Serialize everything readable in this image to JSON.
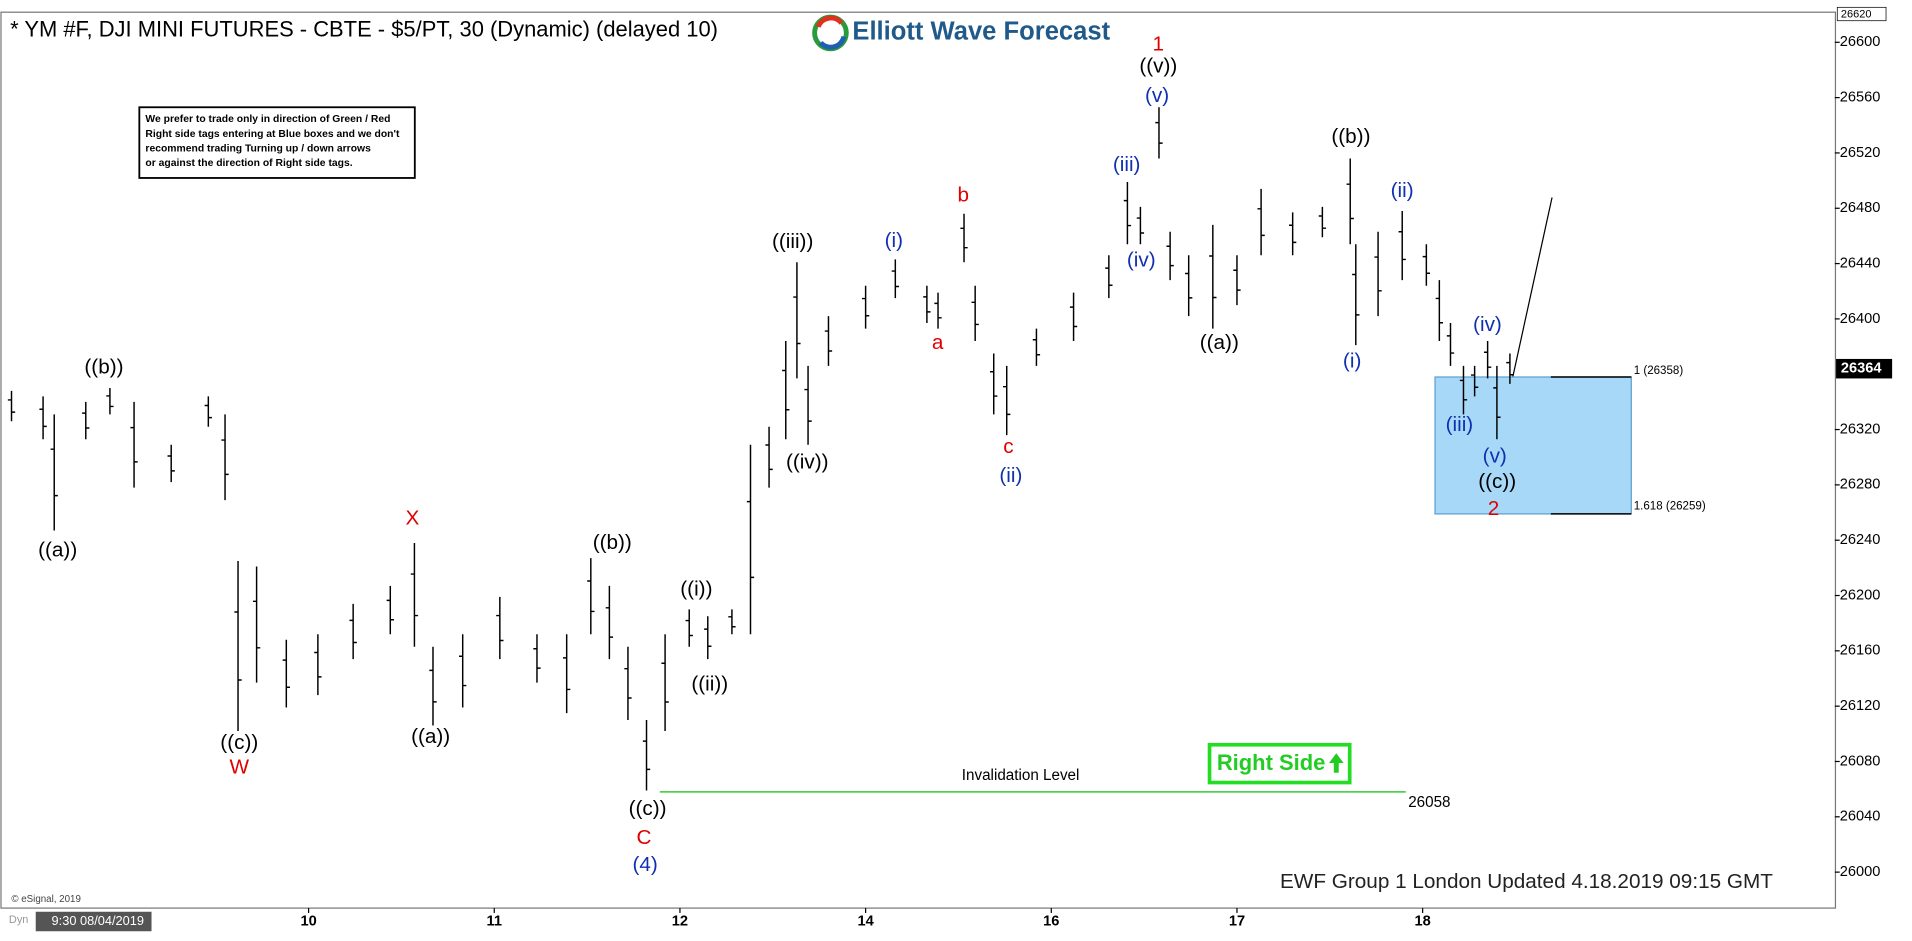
{
  "chart_data": {
    "type": "ohlc",
    "title": "* YM #F, DJI MINI FUTURES - CBTE - $5/PT, 30 (Dynamic) (delayed 10)",
    "brand": "Elliott Wave Forecast",
    "note": [
      "We prefer to trade only in direction of Green / Red",
      "Right side tags entering at Blue boxes and we don't",
      "recommend trading Turning up / down arrows",
      "or against the direction of Right side tags."
    ],
    "x": [
      -0.6,
      -0.43,
      -0.37,
      -0.2,
      -0.07,
      0.06,
      0.26,
      0.46,
      0.55,
      0.62,
      0.72,
      0.88,
      1.05,
      1.24,
      1.44,
      1.57,
      1.67,
      1.83,
      2.03,
      2.23,
      2.39,
      2.52,
      2.62,
      2.72,
      2.82,
      2.92,
      3.05,
      3.15,
      3.28,
      3.38,
      3.48,
      3.57,
      3.63,
      3.69,
      3.8,
      4.0,
      4.16,
      4.33,
      4.39,
      4.53,
      4.59,
      4.69,
      4.76,
      4.92,
      5.12,
      5.31,
      5.41,
      5.48,
      5.58,
      5.64,
      5.74,
      5.87,
      6.0,
      6.13,
      6.3,
      6.46,
      6.61,
      6.64,
      6.76,
      6.89,
      7.02,
      7.09,
      7.15,
      7.22,
      7.28,
      7.35,
      7.4,
      7.47
    ],
    "high": [
      26348,
      26344,
      26331,
      26340,
      26350,
      26340,
      26309,
      26344,
      26331,
      26225,
      26221,
      26168,
      26172,
      26194,
      26207,
      26238,
      26163,
      26172,
      26199,
      26172,
      26172,
      26227,
      26207,
      26163,
      26110,
      26172,
      26190,
      26185,
      26190,
      26309,
      26322,
      26384,
      26441,
      26366,
      26402,
      26424,
      26443,
      26424,
      26419,
      26476,
      26424,
      26375,
      26366,
      26393,
      26419,
      26446,
      26499,
      26481,
      26553,
      26463,
      26446,
      26468,
      26446,
      26494,
      26477,
      26481,
      26516,
      26454,
      26463,
      26478,
      26454,
      26428,
      26397,
      26366,
      26366,
      26384,
      26366,
      26375
    ],
    "low": [
      26326,
      26313,
      26247,
      26313,
      26331,
      26278,
      26282,
      26322,
      26269,
      26102,
      26137,
      26119,
      26128,
      26154,
      26172,
      26163,
      26106,
      26119,
      26154,
      26137,
      26115,
      26172,
      26154,
      26110,
      26059,
      26102,
      26163,
      26154,
      26172,
      26172,
      26278,
      26313,
      26357,
      26309,
      26366,
      26393,
      26415,
      26397,
      26393,
      26441,
      26384,
      26331,
      26316,
      26366,
      26384,
      26415,
      26454,
      26454,
      26516,
      26428,
      26402,
      26393,
      26410,
      26446,
      26446,
      26459,
      26454,
      26381,
      26402,
      26428,
      26424,
      26384,
      26366,
      26331,
      26344,
      26357,
      26313,
      26353
    ],
    "xlim": [
      -0.66,
      9.22
    ],
    "ylim": [
      25974,
      26620
    ],
    "xticks": [
      {
        "value": 1,
        "label": "10"
      },
      {
        "value": 2,
        "label": "11"
      },
      {
        "value": 3,
        "label": "12"
      },
      {
        "value": 4,
        "label": "14"
      },
      {
        "value": 5,
        "label": "16"
      },
      {
        "value": 6,
        "label": "17"
      },
      {
        "value": 7,
        "label": "18"
      }
    ],
    "yticks": [
      26000,
      26040,
      26080,
      26120,
      26160,
      26200,
      26240,
      26280,
      26320,
      26400,
      26440,
      26480,
      26520,
      26560,
      26600
    ],
    "last_price": 26364,
    "start_label": "9:30 08/04/2019",
    "annotations": [
      {
        "text": "((a))",
        "color": "#000000"
      },
      {
        "text": "((b))",
        "color": "#000000"
      },
      {
        "text": "((c))",
        "color": "#000000"
      },
      {
        "text": "W",
        "color": "#e00000"
      },
      {
        "text": "X",
        "color": "#e00000"
      },
      {
        "text": "((a))",
        "color": "#000000"
      },
      {
        "text": "((b))",
        "color": "#000000"
      },
      {
        "text": "((c))",
        "color": "#000000"
      },
      {
        "text": "C",
        "color": "#e00000"
      },
      {
        "text": "(4)",
        "color": "#1030b0"
      },
      {
        "text": "((i))",
        "color": "#000000"
      },
      {
        "text": "((ii))",
        "color": "#000000"
      },
      {
        "text": "((iii))",
        "color": "#000000"
      },
      {
        "text": "((iv))",
        "color": "#000000"
      },
      {
        "text": "(i)",
        "color": "#1030b0"
      },
      {
        "text": "a",
        "color": "#e00000"
      },
      {
        "text": "b",
        "color": "#e00000"
      },
      {
        "text": "c",
        "color": "#e00000"
      },
      {
        "text": "(ii)",
        "color": "#1030b0"
      },
      {
        "text": "(iii)",
        "color": "#1030b0"
      },
      {
        "text": "(iv)",
        "color": "#1030b0"
      },
      {
        "text": "1",
        "color": "#e00000"
      },
      {
        "text": "((v))",
        "color": "#000000"
      },
      {
        "text": "(v)",
        "color": "#1030b0"
      },
      {
        "text": "((a))",
        "color": "#000000"
      },
      {
        "text": "((b))",
        "color": "#000000"
      },
      {
        "text": "(ii)",
        "color": "#1030b0"
      },
      {
        "text": "(i)",
        "color": "#1030b0"
      },
      {
        "text": "(iv)",
        "color": "#1030b0"
      },
      {
        "text": "(iii)",
        "color": "#1030b0"
      },
      {
        "text": "(v)",
        "color": "#1030b0"
      },
      {
        "text": "((c))",
        "color": "#000000"
      },
      {
        "text": "2",
        "color": "#e00000"
      }
    ],
    "target_box": {
      "top": 26358,
      "bottom": 26259,
      "top_label": "1 (26358)",
      "bottom_label": "1.618 (26259)",
      "color": "#a8d8f8"
    },
    "invalidation": {
      "value": 26058,
      "label": "Invalidation Level",
      "color": "#33cc33"
    },
    "tag": "Right Side",
    "footer": "EWF Group 1 London Updated 4.18.2019 09:15 GMT",
    "copyright": "© eSignal, 2019",
    "bottom_tag": "Dyn"
  }
}
